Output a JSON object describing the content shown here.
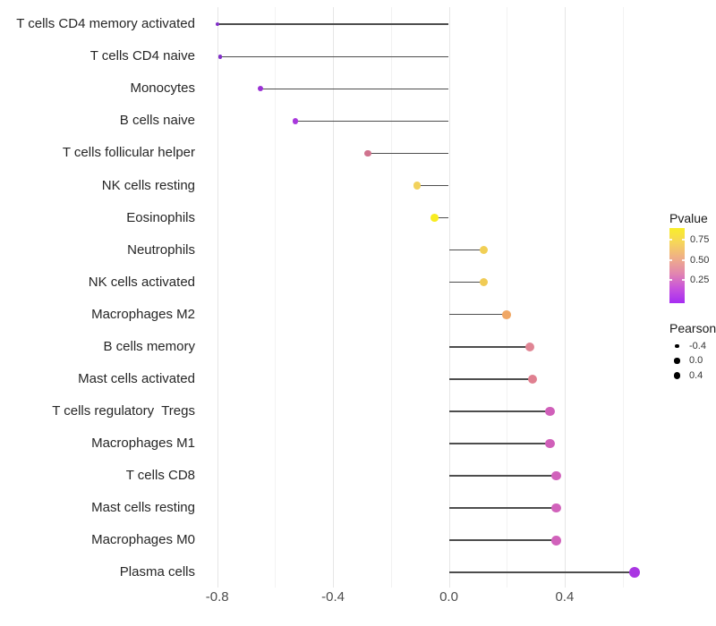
{
  "chart_data": {
    "type": "scatter",
    "style": "horizontal-lollipop",
    "title": "",
    "xlabel": "",
    "ylabel": "",
    "xlim": [
      -0.87,
      0.7
    ],
    "grid": "vertical-only",
    "x_ticks": [
      {
        "value": -0.8,
        "label": "-0.8"
      },
      {
        "value": -0.4,
        "label": "-0.4"
      },
      {
        "value": 0.0,
        "label": "0.0"
      },
      {
        "value": 0.4,
        "label": "0.4"
      }
    ],
    "x_minor_gridlines": [
      -0.6,
      -0.2,
      0.2,
      0.6
    ],
    "points": [
      {
        "label": "T cells CD4 memory activated",
        "pearson": -0.8,
        "color": "#8230c8",
        "radius": 2.2
      },
      {
        "label": "T cells CD4 naive",
        "pearson": -0.79,
        "color": "#8230c8",
        "radius": 2.4
      },
      {
        "label": "Monocytes",
        "pearson": -0.65,
        "color": "#9a30d5",
        "radius": 3.0
      },
      {
        "label": "B cells naive",
        "pearson": -0.53,
        "color": "#a838dc",
        "radius": 3.4
      },
      {
        "label": "T cells follicular helper",
        "pearson": -0.28,
        "color": "#d0738e",
        "radius": 3.9
      },
      {
        "label": "NK cells resting",
        "pearson": -0.11,
        "color": "#f2d25c",
        "radius": 4.3
      },
      {
        "label": "Eosinophils",
        "pearson": -0.05,
        "color": "#f8ec20",
        "radius": 4.4
      },
      {
        "label": "Neutrophils",
        "pearson": 0.12,
        "color": "#f1cf55",
        "radius": 4.7
      },
      {
        "label": "NK cells activated",
        "pearson": 0.12,
        "color": "#f0cb55",
        "radius": 4.7
      },
      {
        "label": "Macrophages M2",
        "pearson": 0.2,
        "color": "#f0a765",
        "radius": 4.9
      },
      {
        "label": "B cells memory",
        "pearson": 0.28,
        "color": "#e08594",
        "radius": 5.1
      },
      {
        "label": "Mast cells activated",
        "pearson": 0.29,
        "color": "#e08090",
        "radius": 5.1
      },
      {
        "label": "T cells regulatory  Tregs",
        "pearson": 0.35,
        "color": "#d05fb9",
        "radius": 5.3
      },
      {
        "label": "Macrophages M1",
        "pearson": 0.35,
        "color": "#d05fb9",
        "radius": 5.3
      },
      {
        "label": "T cells CD8",
        "pearson": 0.37,
        "color": "#d162bb",
        "radius": 5.4
      },
      {
        "label": "Mast cells resting",
        "pearson": 0.37,
        "color": "#d162bb",
        "radius": 5.4
      },
      {
        "label": "Macrophages M0",
        "pearson": 0.37,
        "color": "#d162bb",
        "radius": 5.4
      },
      {
        "label": "Plasma cells",
        "pearson": 0.64,
        "color": "#a936e2",
        "radius": 6.0
      }
    ],
    "legend": {
      "pvalue": {
        "title": "Pvalue",
        "tick_labels": [
          "0.75",
          "0.50",
          "0.25"
        ],
        "gradient_stops_top_to_bottom": [
          "#f9ee2a",
          "#f6d45c",
          "#efae88",
          "#e287ae",
          "#c853dc",
          "#a62cf2"
        ]
      },
      "pearson": {
        "title": "Pearson",
        "items": [
          {
            "label": "-0.4",
            "radius": 2.3
          },
          {
            "label": "0.0",
            "radius": 3.1
          },
          {
            "label": "0.4",
            "radius": 3.9
          }
        ]
      }
    },
    "colors": {
      "stem": "#4d4d4d",
      "axis_text": "#4d4d4d",
      "category_text": "#262626"
    }
  }
}
